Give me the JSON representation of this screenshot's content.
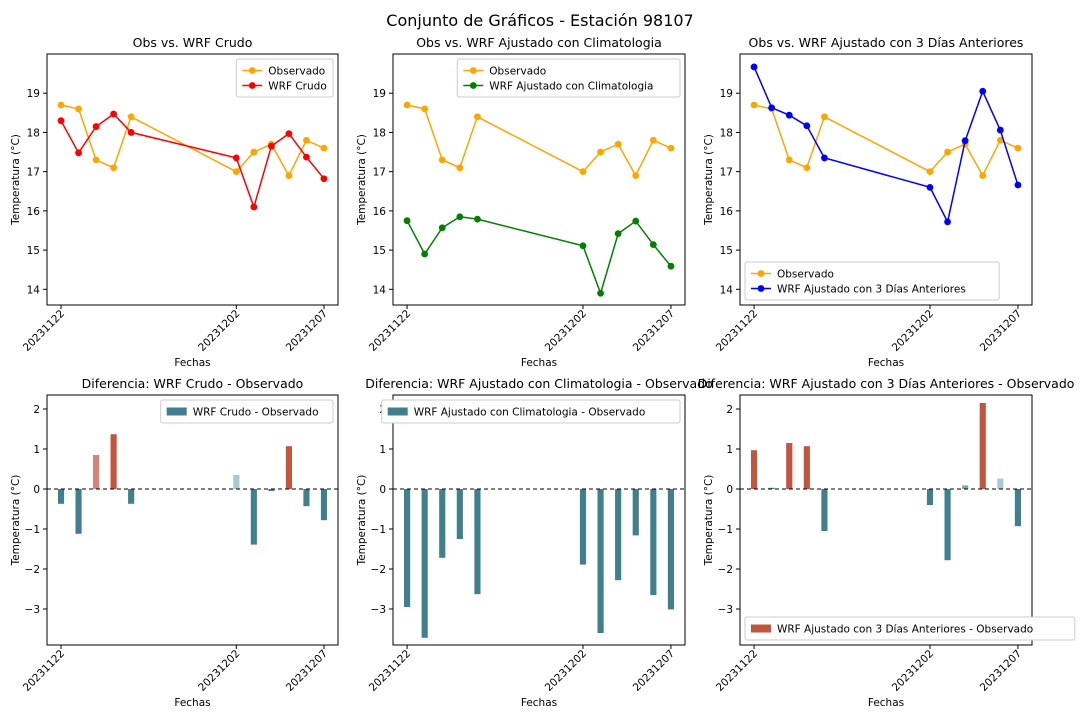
{
  "figure": {
    "title": "Conjunto de Gráficos - Estación 98107"
  },
  "chart_data": [
    {
      "type": "line",
      "title": "Obs vs. WRF Crudo",
      "xlabel": "Fechas",
      "ylabel": "Temperatura (°C)",
      "x": [
        "20231122",
        "20231123",
        "20231124",
        "20231125",
        "20231126",
        "20231127",
        "20231128",
        "20231129",
        "20231130",
        "20231201",
        "20231202",
        "20231203",
        "20231204",
        "20231205",
        "20231206",
        "20231207"
      ],
      "x_tick_labels": [
        "20231122",
        "20231202",
        "20231207"
      ],
      "ylim": [
        13.6,
        20.0
      ],
      "yticks": [
        14,
        15,
        16,
        17,
        18,
        19
      ],
      "legend": "top-right",
      "grid": false,
      "series": [
        {
          "name": "Observado",
          "color": "#ffa500",
          "x": [
            "20231122",
            "20231123",
            "20231124",
            "20231125",
            "20231126",
            "20231202",
            "20231203",
            "20231204",
            "20231205",
            "20231206",
            "20231207"
          ],
          "values": [
            18.7,
            18.6,
            17.3,
            17.1,
            18.4,
            17.0,
            17.5,
            17.7,
            16.9,
            17.8,
            17.6
          ]
        },
        {
          "name": "WRF Crudo",
          "color": "#ff0000",
          "x": [
            "20231122",
            "20231123",
            "20231124",
            "20231125",
            "20231126",
            "20231202",
            "20231203",
            "20231204",
            "20231205",
            "20231206",
            "20231207"
          ],
          "values": [
            18.3,
            17.48,
            18.15,
            18.47,
            18.0,
            17.35,
            16.1,
            17.65,
            17.97,
            17.37,
            16.82
          ]
        }
      ]
    },
    {
      "type": "line",
      "title": "Obs vs. WRF Ajustado con Climatologia",
      "xlabel": "Fechas",
      "ylabel": "Temperatura (°C)",
      "x": [
        "20231122",
        "20231123",
        "20231124",
        "20231125",
        "20231126",
        "20231127",
        "20231128",
        "20231129",
        "20231130",
        "20231201",
        "20231202",
        "20231203",
        "20231204",
        "20231205",
        "20231206",
        "20231207"
      ],
      "x_tick_labels": [
        "20231122",
        "20231202",
        "20231207"
      ],
      "ylim": [
        13.6,
        20.0
      ],
      "yticks": [
        14,
        15,
        16,
        17,
        18,
        19
      ],
      "legend": "top-right",
      "grid": false,
      "series": [
        {
          "name": "Observado",
          "color": "#ffa500",
          "x": [
            "20231122",
            "20231123",
            "20231124",
            "20231125",
            "20231126",
            "20231202",
            "20231203",
            "20231204",
            "20231205",
            "20231206",
            "20231207"
          ],
          "values": [
            18.7,
            18.6,
            17.3,
            17.1,
            18.4,
            17.0,
            17.5,
            17.7,
            16.9,
            17.8,
            17.6
          ]
        },
        {
          "name": "WRF Ajustado con Climatologia",
          "color": "#008000",
          "x": [
            "20231122",
            "20231123",
            "20231124",
            "20231125",
            "20231126",
            "20231202",
            "20231203",
            "20231204",
            "20231205",
            "20231206",
            "20231207"
          ],
          "values": [
            15.75,
            14.9,
            15.57,
            15.85,
            15.79,
            15.11,
            13.9,
            15.42,
            15.74,
            15.14,
            14.59
          ]
        }
      ]
    },
    {
      "type": "line",
      "title": "Obs vs. WRF Ajustado con 3 Días Anteriores",
      "xlabel": "Fechas",
      "ylabel": "Temperatura (°C)",
      "x": [
        "20231122",
        "20231123",
        "20231124",
        "20231125",
        "20231126",
        "20231127",
        "20231128",
        "20231129",
        "20231130",
        "20231201",
        "20231202",
        "20231203",
        "20231204",
        "20231205",
        "20231206",
        "20231207"
      ],
      "x_tick_labels": [
        "20231122",
        "20231202",
        "20231207"
      ],
      "ylim": [
        13.6,
        20.0
      ],
      "yticks": [
        14,
        15,
        16,
        17,
        18,
        19
      ],
      "legend": "bottom-left",
      "grid": false,
      "series": [
        {
          "name": "Observado",
          "color": "#ffa500",
          "x": [
            "20231122",
            "20231123",
            "20231124",
            "20231125",
            "20231126",
            "20231202",
            "20231203",
            "20231204",
            "20231205",
            "20231206",
            "20231207"
          ],
          "values": [
            18.7,
            18.6,
            17.3,
            17.1,
            18.4,
            17.0,
            17.5,
            17.7,
            16.9,
            17.8,
            17.6
          ]
        },
        {
          "name": "WRF Ajustado con 3 Días Anteriores",
          "color": "#0000ff",
          "x": [
            "20231122",
            "20231123",
            "20231124",
            "20231125",
            "20231126",
            "20231202",
            "20231203",
            "20231204",
            "20231205",
            "20231206",
            "20231207"
          ],
          "values": [
            19.67,
            18.63,
            18.44,
            18.17,
            17.35,
            16.6,
            15.72,
            17.79,
            19.05,
            18.06,
            16.66
          ]
        }
      ]
    },
    {
      "type": "bar",
      "title": "Diferencia: WRF Crudo - Observado",
      "xlabel": "Fechas",
      "ylabel": "Temperatura (°C)",
      "x": [
        "20231122",
        "20231123",
        "20231124",
        "20231125",
        "20231126",
        "20231127",
        "20231128",
        "20231129",
        "20231130",
        "20231201",
        "20231202",
        "20231203",
        "20231204",
        "20231205",
        "20231206",
        "20231207"
      ],
      "x_tick_labels": [
        "20231122",
        "20231202",
        "20231207"
      ],
      "ylim": [
        -3.9,
        2.35
      ],
      "yticks": [
        -3,
        -2,
        -1,
        0,
        1,
        2
      ],
      "legend": "top-right",
      "grid": false,
      "series": [
        {
          "name": "WRF Crudo - Observado",
          "x": [
            "20231122",
            "20231123",
            "20231124",
            "20231125",
            "20231126",
            "20231202",
            "20231203",
            "20231204",
            "20231205",
            "20231206",
            "20231207"
          ],
          "values": [
            -0.37,
            -1.12,
            0.85,
            1.37,
            -0.37,
            0.35,
            -1.39,
            -0.05,
            1.07,
            -0.43,
            -0.78
          ],
          "colors": [
            "#427f8e",
            "#427f8e",
            "#d4857a",
            "#c1553d",
            "#427f8e",
            "#a9c8d3",
            "#427f8e",
            "#427f8e",
            "#c1553d",
            "#427f8e",
            "#427f8e"
          ]
        }
      ],
      "legend_color": "#427f8e"
    },
    {
      "type": "bar",
      "title": "Diferencia: WRF Ajustado con Climatologia - Observado",
      "xlabel": "Fechas",
      "ylabel": "Temperatura (°C)",
      "x": [
        "20231122",
        "20231123",
        "20231124",
        "20231125",
        "20231126",
        "20231127",
        "20231128",
        "20231129",
        "20231130",
        "20231201",
        "20231202",
        "20231203",
        "20231204",
        "20231205",
        "20231206",
        "20231207"
      ],
      "x_tick_labels": [
        "20231122",
        "20231202",
        "20231207"
      ],
      "ylim": [
        -3.9,
        2.35
      ],
      "yticks": [
        -3,
        -2,
        -1,
        0,
        1,
        2
      ],
      "legend": "top-right",
      "grid": false,
      "series": [
        {
          "name": "WRF Ajustado con Climatologia - Observado",
          "x": [
            "20231122",
            "20231123",
            "20231124",
            "20231125",
            "20231126",
            "20231202",
            "20231203",
            "20231204",
            "20231205",
            "20231206",
            "20231207"
          ],
          "values": [
            -2.95,
            -3.72,
            -1.72,
            -1.25,
            -2.63,
            -1.89,
            -3.6,
            -2.28,
            -1.16,
            -2.65,
            -3.01
          ],
          "colors": [
            "#427f8e",
            "#427f8e",
            "#427f8e",
            "#427f8e",
            "#427f8e",
            "#427f8e",
            "#427f8e",
            "#427f8e",
            "#427f8e",
            "#427f8e",
            "#427f8e"
          ]
        }
      ],
      "legend_color": "#427f8e"
    },
    {
      "type": "bar",
      "title": "Diferencia: WRF Ajustado con 3 Días Anteriores - Observado",
      "xlabel": "Fechas",
      "ylabel": "Temperatura (°C)",
      "x": [
        "20231122",
        "20231123",
        "20231124",
        "20231125",
        "20231126",
        "20231127",
        "20231128",
        "20231129",
        "20231130",
        "20231201",
        "20231202",
        "20231203",
        "20231204",
        "20231205",
        "20231206",
        "20231207"
      ],
      "x_tick_labels": [
        "20231122",
        "20231202",
        "20231207"
      ],
      "ylim": [
        -3.9,
        2.35
      ],
      "yticks": [
        -3,
        -2,
        -1,
        0,
        1,
        2
      ],
      "legend": "bottom-left",
      "grid": false,
      "series": [
        {
          "name": "WRF Ajustado con 3 Días Anteriores - Observado",
          "x": [
            "20231122",
            "20231123",
            "20231124",
            "20231125",
            "20231126",
            "20231202",
            "20231203",
            "20231204",
            "20231205",
            "20231206",
            "20231207"
          ],
          "values": [
            0.97,
            0.03,
            1.15,
            1.07,
            -1.05,
            -0.4,
            -1.78,
            0.09,
            2.15,
            0.26,
            -0.93
          ],
          "colors": [
            "#c1553d",
            "#427f8e",
            "#c1553d",
            "#c1553d",
            "#427f8e",
            "#427f8e",
            "#427f8e",
            "#7fa6b3",
            "#c1553d",
            "#a9c8d3",
            "#427f8e"
          ]
        }
      ],
      "legend_color": "#c1553d"
    }
  ]
}
